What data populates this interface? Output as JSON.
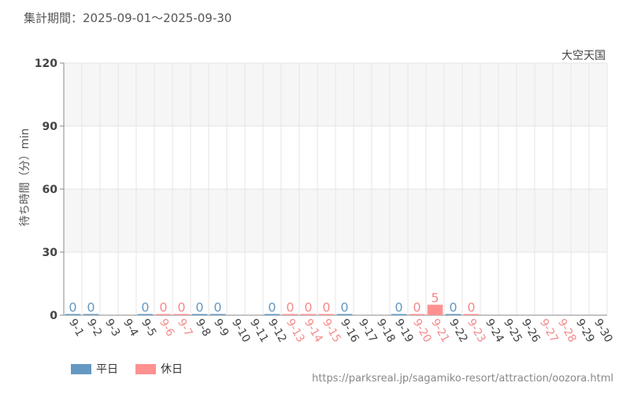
{
  "header": {
    "period_label": "集計期間：2025-09-01～2025-09-30"
  },
  "footer": {
    "source": "https://parksreal.jp/sagamiko-resort/attraction/oozora.html"
  },
  "colors": {
    "weekday": "#6699c2",
    "holiday": "#ff9191",
    "weekday_label": "#6699c2",
    "holiday_label": "#f58a8a",
    "tick_weekday": "#444444",
    "tick_holiday": "#f58a8a"
  },
  "chart_data": {
    "type": "bar",
    "title": "",
    "subtitle": "大空天国",
    "xlabel": "",
    "ylabel": "待ち時間（分）min",
    "ylim": [
      0,
      120
    ],
    "yticks": [
      0,
      30,
      60,
      90,
      120
    ],
    "grid": true,
    "legend_position": "bottom-left",
    "categories": [
      "9-1",
      "9-2",
      "9-3",
      "9-4",
      "9-5",
      "9-6",
      "9-7",
      "9-8",
      "9-9",
      "9-10",
      "9-11",
      "9-12",
      "9-13",
      "9-14",
      "9-15",
      "9-16",
      "9-17",
      "9-18",
      "9-19",
      "9-20",
      "9-21",
      "9-22",
      "9-23",
      "9-24",
      "9-25",
      "9-26",
      "9-27",
      "9-28",
      "9-29",
      "9-30"
    ],
    "day_type": [
      "weekday",
      "weekday",
      "weekday",
      "weekday",
      "weekday",
      "holiday",
      "holiday",
      "weekday",
      "weekday",
      "weekday",
      "weekday",
      "weekday",
      "holiday",
      "holiday",
      "holiday",
      "weekday",
      "weekday",
      "weekday",
      "weekday",
      "holiday",
      "holiday",
      "weekday",
      "holiday",
      "weekday",
      "weekday",
      "weekday",
      "holiday",
      "holiday",
      "weekday",
      "weekday"
    ],
    "values": [
      0,
      0,
      null,
      null,
      0,
      0,
      0,
      0,
      0,
      null,
      null,
      0,
      0,
      0,
      0,
      0,
      null,
      null,
      0,
      0,
      5,
      0,
      0,
      null,
      null,
      null,
      null,
      null,
      null,
      null
    ],
    "series": [
      {
        "name": "平日",
        "key": "weekday"
      },
      {
        "name": "休日",
        "key": "holiday"
      }
    ]
  }
}
